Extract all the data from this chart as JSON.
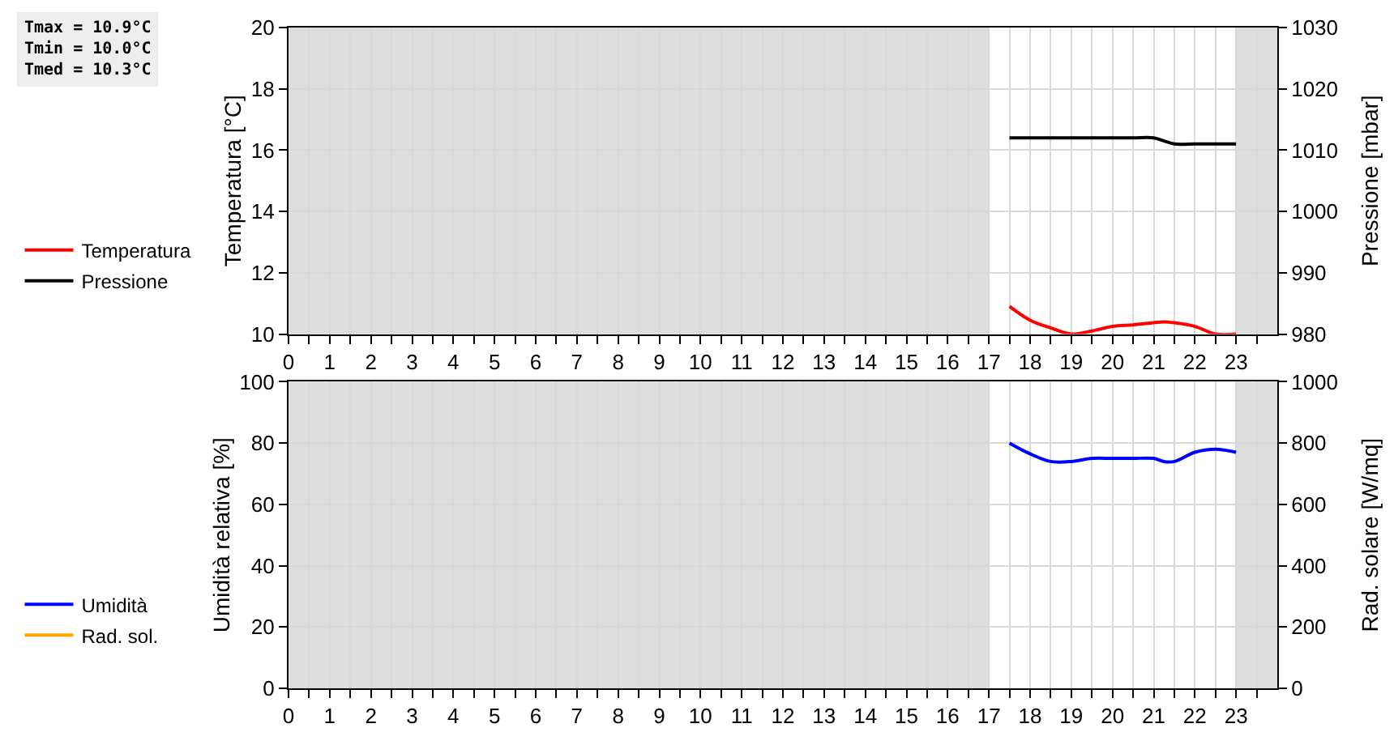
{
  "chart_data": [
    {
      "type": "line",
      "ylabel": "Temperatura [°C]",
      "y2label": "Pressione [mbar]",
      "annotations": [
        "Tmax = 10.9°C",
        "Tmin = 10.0°C",
        "Tmed = 10.3°C"
      ],
      "xlim": [
        0,
        24
      ],
      "xticks": [
        0,
        {
          "value": 0.5,
          "label": null
        },
        1,
        {
          "value": 1.5,
          "label": null
        },
        2,
        {
          "value": 2.5,
          "label": null
        },
        3,
        {
          "value": 3.5,
          "label": null
        },
        4,
        {
          "value": 4.5,
          "label": null
        },
        5,
        {
          "value": 5.5,
          "label": null
        },
        6,
        {
          "value": 6.5,
          "label": null
        },
        7,
        {
          "value": 7.5,
          "label": null
        },
        8,
        {
          "value": 8.5,
          "label": null
        },
        9,
        {
          "value": 9.5,
          "label": null
        },
        10,
        {
          "value": 10.5,
          "label": null
        },
        11,
        {
          "value": 11.5,
          "label": null
        },
        12,
        {
          "value": 12.5,
          "label": null
        },
        13,
        {
          "value": 13.5,
          "label": null
        },
        14,
        {
          "value": 14.5,
          "label": null
        },
        15,
        {
          "value": 15.5,
          "label": null
        },
        16,
        {
          "value": 16.5,
          "label": null
        },
        17,
        {
          "value": 17.5,
          "label": null
        },
        18,
        {
          "value": 18.5,
          "label": null
        },
        19,
        {
          "value": 19.5,
          "label": null
        },
        20,
        {
          "value": 20.5,
          "label": null
        },
        21,
        {
          "value": 21.5,
          "label": null
        },
        22,
        {
          "value": 22.5,
          "label": null
        },
        23,
        {
          "value": 23.5,
          "label": null
        }
      ],
      "ylim": [
        10,
        20
      ],
      "yticks": [
        10,
        12,
        14,
        16,
        18,
        20
      ],
      "y2lim": [
        980,
        1030
      ],
      "y2ticks": [
        980,
        990,
        1000,
        1010,
        1020,
        1030
      ],
      "x": [
        17.5,
        18,
        18.5,
        19,
        19.5,
        20,
        20.5,
        21,
        21.25,
        21.5,
        22,
        22.5,
        23
      ],
      "series": [
        {
          "name": "Temperatura",
          "color": "#ff0000",
          "values": [
            10.9,
            10.45,
            10.2,
            10.0,
            10.1,
            10.25,
            10.3,
            10.37,
            10.4,
            10.37,
            10.25,
            10.0,
            10.0
          ]
        },
        {
          "name": "Pressione",
          "color": "#000000",
          "axis": "y2",
          "values": [
            1012,
            1012,
            1012,
            1012,
            1012,
            1012,
            1012,
            1012,
            1011.5,
            1011,
            1011,
            1011,
            1011
          ]
        }
      ],
      "bands": [
        {
          "axis": "x",
          "from": 0,
          "to": 17,
          "color": "#dddddd"
        },
        {
          "axis": "x",
          "from": 23,
          "to": 24,
          "color": "#dddddd"
        }
      ],
      "grid": true,
      "legend": "left",
      "marker": "none",
      "line_style": "solid"
    },
    {
      "type": "line",
      "ylabel": "Umidità relativa [%]",
      "y2label": "Rad. solare [W/mq]",
      "xlim": [
        0,
        24
      ],
      "xticks": [
        0,
        {
          "value": 0.5,
          "label": null
        },
        1,
        {
          "value": 1.5,
          "label": null
        },
        2,
        {
          "value": 2.5,
          "label": null
        },
        3,
        {
          "value": 3.5,
          "label": null
        },
        4,
        {
          "value": 4.5,
          "label": null
        },
        5,
        {
          "value": 5.5,
          "label": null
        },
        6,
        {
          "value": 6.5,
          "label": null
        },
        7,
        {
          "value": 7.5,
          "label": null
        },
        8,
        {
          "value": 8.5,
          "label": null
        },
        9,
        {
          "value": 9.5,
          "label": null
        },
        10,
        {
          "value": 10.5,
          "label": null
        },
        11,
        {
          "value": 11.5,
          "label": null
        },
        12,
        {
          "value": 12.5,
          "label": null
        },
        13,
        {
          "value": 13.5,
          "label": null
        },
        14,
        {
          "value": 14.5,
          "label": null
        },
        15,
        {
          "value": 15.5,
          "label": null
        },
        16,
        {
          "value": 16.5,
          "label": null
        },
        17,
        {
          "value": 17.5,
          "label": null
        },
        18,
        {
          "value": 18.5,
          "label": null
        },
        19,
        {
          "value": 19.5,
          "label": null
        },
        20,
        {
          "value": 20.5,
          "label": null
        },
        21,
        {
          "value": 21.5,
          "label": null
        },
        22,
        {
          "value": 22.5,
          "label": null
        },
        23,
        {
          "value": 23.5,
          "label": null
        }
      ],
      "ylim": [
        0,
        100
      ],
      "yticks": [
        0,
        20,
        40,
        60,
        80,
        100
      ],
      "y2lim": [
        0,
        1000
      ],
      "y2ticks": [
        0,
        200,
        400,
        600,
        800,
        1000
      ],
      "x": [
        17.5,
        18,
        18.5,
        19,
        19.5,
        20,
        20.5,
        21,
        21.25,
        21.5,
        22,
        22.5,
        23
      ],
      "series": [
        {
          "name": "Umidità",
          "color": "#0000ff",
          "values": [
            80,
            76.5,
            74,
            74,
            75,
            75,
            75,
            75,
            74,
            74,
            77,
            78,
            77
          ]
        },
        {
          "name": "Rad. sol.",
          "color": "#ffa500",
          "axis": "y2",
          "values": [
            null,
            null,
            null,
            null,
            null,
            null,
            null,
            null,
            null,
            null,
            null,
            null,
            null
          ]
        }
      ],
      "bands": [
        {
          "axis": "x",
          "from": 0,
          "to": 17,
          "color": "#dddddd"
        },
        {
          "axis": "x",
          "from": 23,
          "to": 24,
          "color": "#dddddd"
        }
      ],
      "grid": true,
      "legend": "left",
      "marker": "none",
      "line_style": "solid"
    }
  ]
}
